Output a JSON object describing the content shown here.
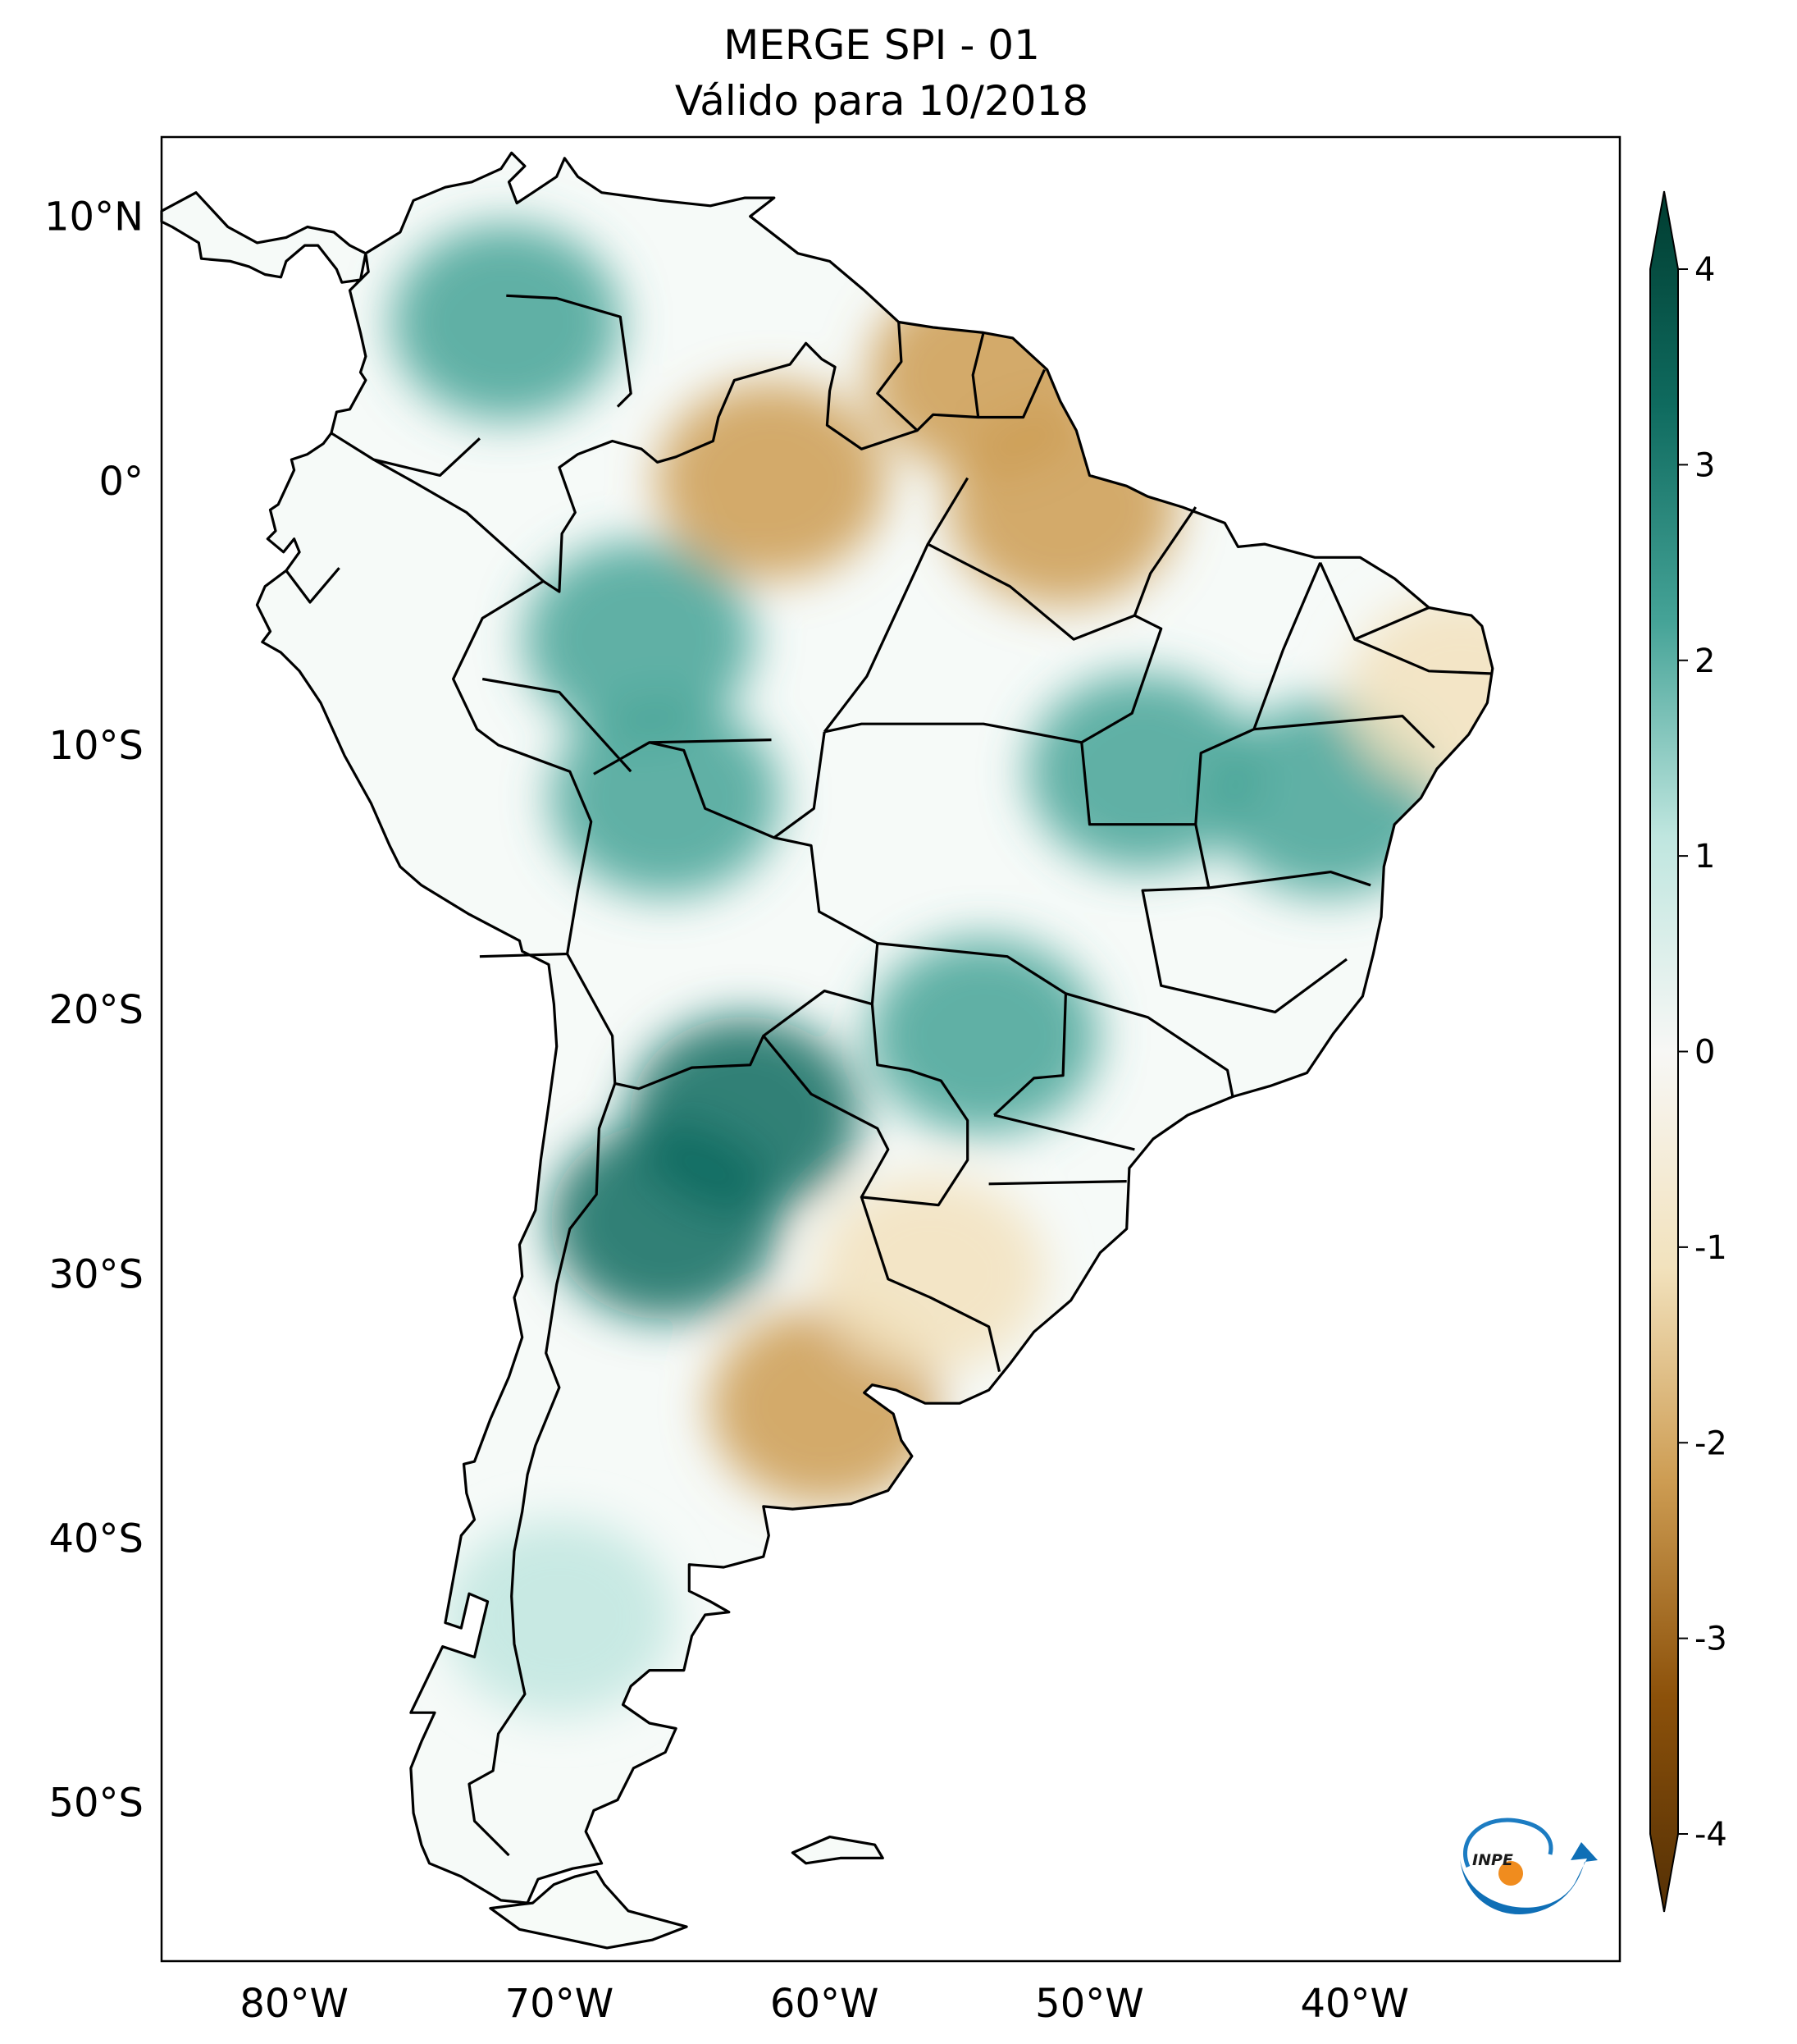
{
  "title_line1": "MERGE   SPI - 01",
  "title_line2": "Válido para 10/2018",
  "map": {
    "extent_lon": [
      -85,
      -30
    ],
    "extent_lat": [
      -56,
      13
    ],
    "lat_ticks": [
      {
        "value": 10,
        "label": "10°N"
      },
      {
        "value": 0,
        "label": "0°"
      },
      {
        "value": -10,
        "label": "10°S"
      },
      {
        "value": -20,
        "label": "20°S"
      },
      {
        "value": -30,
        "label": "30°S"
      },
      {
        "value": -40,
        "label": "40°S"
      },
      {
        "value": -50,
        "label": "50°S"
      }
    ],
    "lon_ticks": [
      {
        "value": -80,
        "label": "80°W"
      },
      {
        "value": -70,
        "label": "70°W"
      },
      {
        "value": -60,
        "label": "60°W"
      },
      {
        "value": -50,
        "label": "50°W"
      },
      {
        "value": -40,
        "label": "40°W"
      }
    ],
    "wet_regions": [
      {
        "lon": -72,
        "lat": 6,
        "spi": 2.0
      },
      {
        "lon": -67,
        "lat": -6,
        "spi": 2.2
      },
      {
        "lon": -66,
        "lat": -12,
        "spi": 2.3
      },
      {
        "lon": -63,
        "lat": -24,
        "spi": 2.8
      },
      {
        "lon": -66,
        "lat": -28,
        "spi": 2.5
      },
      {
        "lon": -54,
        "lat": -21,
        "spi": 2.0
      },
      {
        "lon": -48,
        "lat": -11,
        "spi": 1.6
      },
      {
        "lon": -41,
        "lat": -12,
        "spi": 1.8
      },
      {
        "lon": -70,
        "lat": -43,
        "spi": 1.4
      }
    ],
    "dry_regions": [
      {
        "lon": -62,
        "lat": 0,
        "spi": -2.5
      },
      {
        "lon": -54,
        "lat": 4,
        "spi": -1.8
      },
      {
        "lon": -51,
        "lat": -1,
        "spi": -2.0
      },
      {
        "lon": -60,
        "lat": -35,
        "spi": -2.0
      },
      {
        "lon": -56,
        "lat": -30,
        "spi": -1.5
      },
      {
        "lon": -36,
        "lat": -8,
        "spi": -1.4
      }
    ]
  },
  "colorbar": {
    "min": -4,
    "max": 4,
    "ticks": [
      {
        "value": 4,
        "label": "4"
      },
      {
        "value": 3,
        "label": "3"
      },
      {
        "value": 2,
        "label": "2"
      },
      {
        "value": 1,
        "label": "1"
      },
      {
        "value": 0,
        "label": "0"
      },
      {
        "value": -1,
        "label": "-1"
      },
      {
        "value": -2,
        "label": "-2"
      },
      {
        "value": -3,
        "label": "-3"
      },
      {
        "value": -4,
        "label": "-4"
      }
    ],
    "colors": {
      "4": "#003c30",
      "3": "#0f6b5f",
      "2": "#45a397",
      "1": "#bfe6df",
      "0": "#f7f7f5",
      "-1": "#f2e2bd",
      "-2": "#cd9c52",
      "-3": "#8c510a",
      "-4": "#543005"
    }
  },
  "logo": {
    "text": "INPE"
  }
}
